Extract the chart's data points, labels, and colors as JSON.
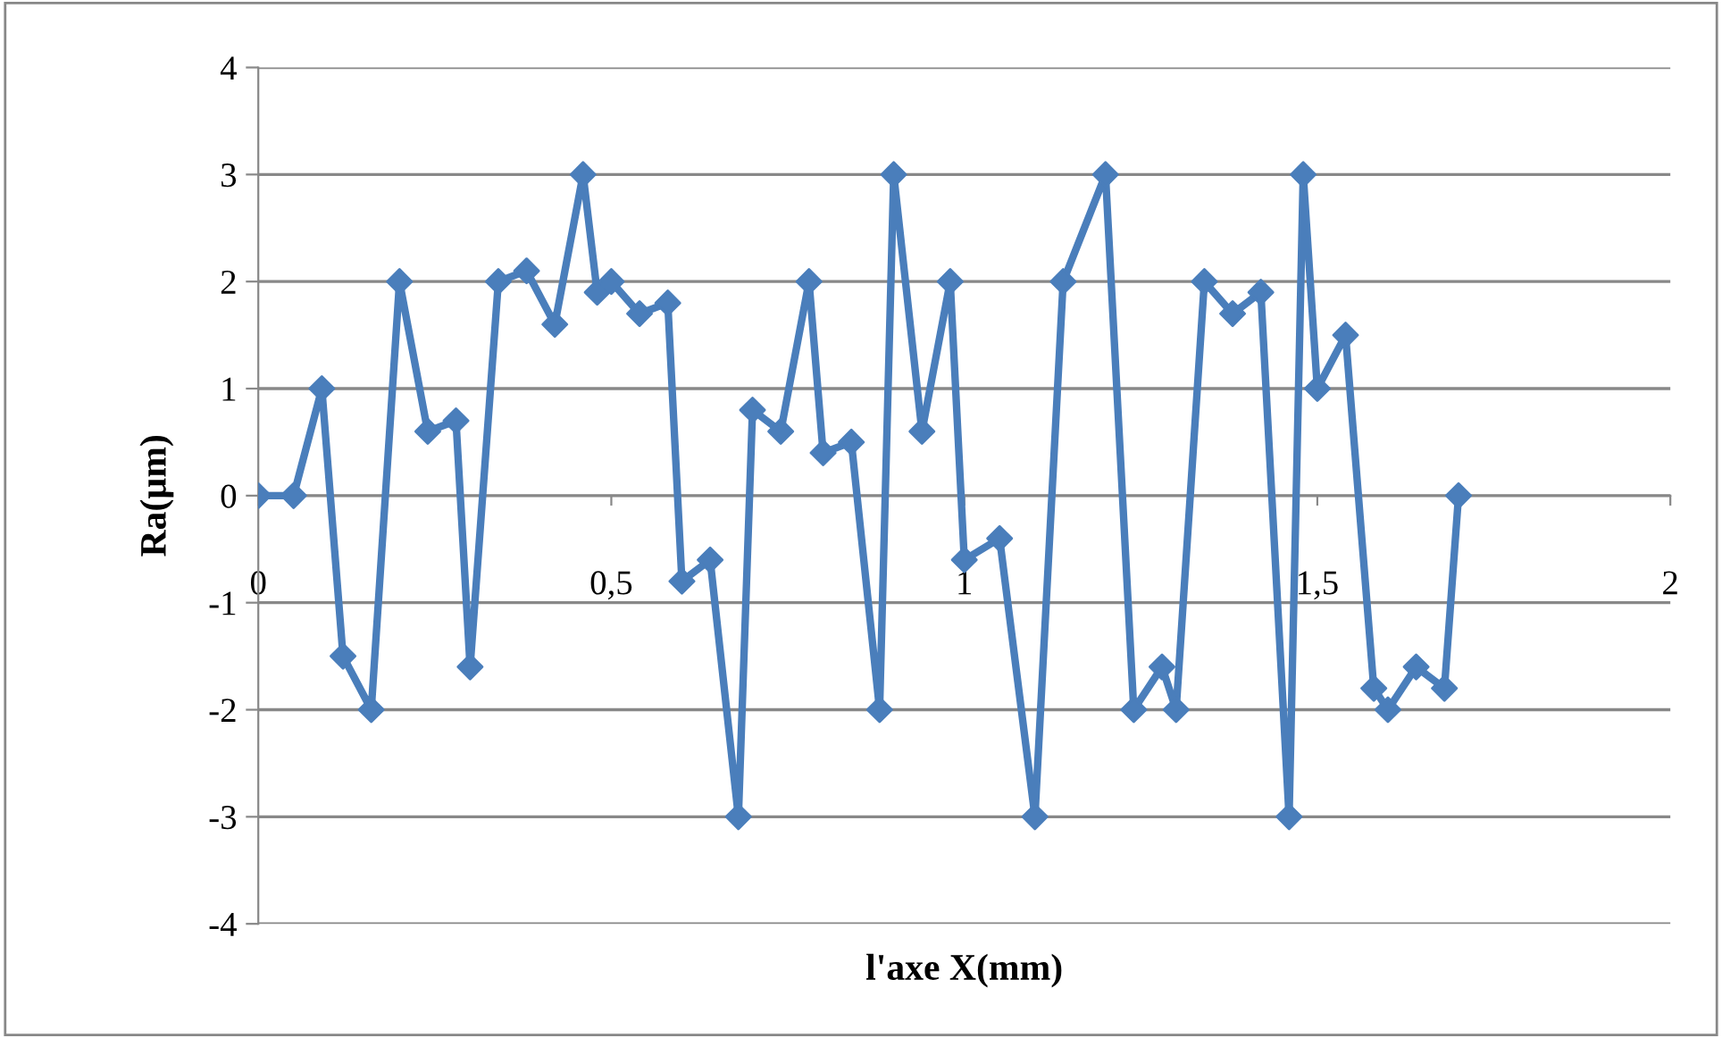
{
  "chart_data": {
    "type": "line",
    "xlabel": "l'axe X(mm)",
    "ylabel": "Ra(µm)",
    "x": [
      0,
      0.05,
      0.09,
      0.12,
      0.16,
      0.2,
      0.24,
      0.28,
      0.3,
      0.34,
      0.38,
      0.42,
      0.46,
      0.48,
      0.5,
      0.54,
      0.58,
      0.6,
      0.64,
      0.68,
      0.7,
      0.74,
      0.78,
      0.8,
      0.84,
      0.88,
      0.9,
      0.94,
      0.98,
      1.0,
      1.05,
      1.1,
      1.14,
      1.2,
      1.24,
      1.28,
      1.3,
      1.34,
      1.38,
      1.42,
      1.46,
      1.48,
      1.5,
      1.54,
      1.58,
      1.6,
      1.64,
      1.68,
      1.7
    ],
    "series": [
      {
        "color": "#4a7ebb",
        "values": [
          0,
          0,
          1,
          -1.5,
          -2,
          2,
          0.6,
          0.7,
          -1.6,
          2,
          2.1,
          1.6,
          3,
          1.9,
          2,
          1.7,
          1.8,
          -0.8,
          -0.6,
          -3,
          0.8,
          0.6,
          2,
          0.4,
          0.5,
          -2,
          3,
          0.6,
          2,
          -0.6,
          -0.4,
          -3,
          2,
          3,
          -2,
          -1.6,
          -2,
          2,
          1.7,
          1.9,
          -3,
          3,
          1,
          1.5,
          -1.8,
          -2,
          -1.6,
          -1.8,
          0
        ]
      }
    ],
    "xlim": [
      0,
      2
    ],
    "xticks": [
      0,
      {
        "value": 0.5,
        "label": "0,5"
      },
      1,
      {
        "value": 1.5,
        "label": "1,5"
      },
      2
    ],
    "ylim": [
      -4,
      4
    ],
    "yticks": [
      -4,
      -3,
      -2,
      -1,
      0,
      1,
      2,
      3,
      4
    ],
    "grid": "y",
    "marker": "diamond",
    "line_style": "solid",
    "legend": false
  }
}
